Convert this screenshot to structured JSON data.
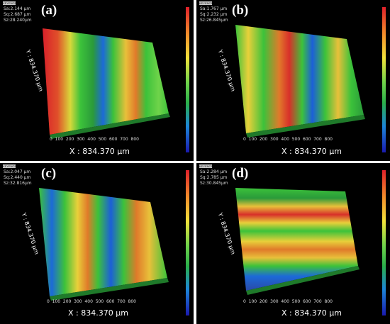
{
  "panels": [
    {
      "letter": "(a)",
      "stats": [
        "Sa:2.144 µm",
        "Sq:2.687 µm",
        "Sz:28.240µm"
      ],
      "x_axis": "X : 834.370 µm",
      "y_axis": "Y : 834.370 µm",
      "cbar_top": "",
      "cbar_bottom": ""
    },
    {
      "letter": "(b)",
      "stats": [
        "Sa:1.767 µm",
        "Sq:2.232 µm",
        "Sz:26.845µm"
      ],
      "x_axis": "X : 834.370 µm",
      "y_axis": "Y : 834.370 µm",
      "cbar_top": "",
      "cbar_bottom": ""
    },
    {
      "letter": "(c)",
      "stats": [
        "Sa:2.047 µm",
        "Sq:2.440 µm",
        "Sz:32.816µm"
      ],
      "x_axis": "X : 834.370 µm",
      "y_axis": "Y : 834.370 µm",
      "cbar_top": "",
      "cbar_bottom": ""
    },
    {
      "letter": "(d)",
      "stats": [
        "Sa:2.284 µm",
        "Sq:2.785 µm",
        "Sz:30.845µm"
      ],
      "x_axis": "X : 834.370 µm",
      "y_axis": "Y : 834.370 µm",
      "cbar_top": "",
      "cbar_bottom": ""
    }
  ],
  "x_ticks": [
    "0",
    "100",
    "200",
    "300",
    "400",
    "500",
    "600",
    "700",
    "800"
  ],
  "y_ticks": [
    "100",
    "200",
    "300",
    "400",
    "500",
    "600",
    "700",
    "800"
  ],
  "logo_text": "KEYENCE",
  "colors": {
    "red": "#e0202a",
    "orange": "#f0822a",
    "yellow": "#e8e03a",
    "green": "#3fc23a",
    "dark_green": "#1f8f3a",
    "blue": "#1c5fd8"
  }
}
